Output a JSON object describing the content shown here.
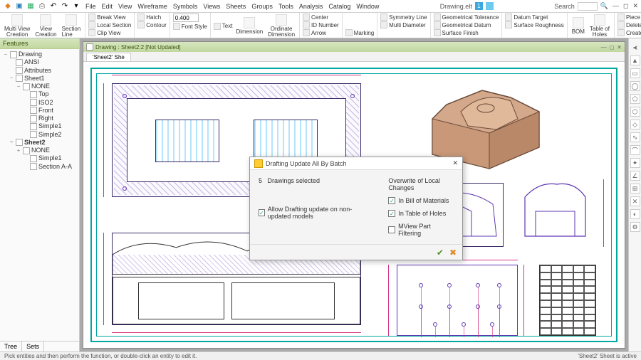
{
  "colors": {
    "accent_green_top": "#d6e6bf",
    "accent_green_bot": "#c1d89f",
    "teal_border": "#00a7a0",
    "purple_line": "#5e35b1",
    "magenta_dim": "#d63384",
    "iso_fill": "#d4a88a",
    "iso_edge": "#6a4a3a",
    "orange": "#f5a623"
  },
  "title": "Drawing.elt",
  "search_label": "Search",
  "menu": [
    "File",
    "Edit",
    "View",
    "Wireframe",
    "Symbols",
    "Views",
    "Sheets",
    "Groups",
    "Tools",
    "Analysis",
    "Catalog",
    "Window"
  ],
  "ribbon": {
    "g1": {
      "btn1": "Multi View\nCreation",
      "btn2": "View\nCreation",
      "btn3": "Section Line"
    },
    "g2": {
      "l1": "Break View",
      "l2": "Local Section",
      "l3": "Clip View"
    },
    "g3": {
      "l1": "Hatch",
      "l2": "Contour"
    },
    "g4": {
      "value": "0.400",
      "l1": "Font Style"
    },
    "g5": {
      "l1": "Text",
      "btn1": "Dimension",
      "btn2": "Ordinate\nDimension"
    },
    "g6": {
      "l1": "Center",
      "l2": "ID Number",
      "l3": "Arrow",
      "l4": "Marking"
    },
    "g7": {
      "l1": "Symmetry Line",
      "l2": "Multi Diameter"
    },
    "g8": {
      "l1": "Geometrical Tolerance",
      "l2": "Geometrical Datum",
      "l3": "Surface Finish"
    },
    "g9": {
      "l1": "Datum Target",
      "l2": "Surface Roughness"
    },
    "g10": {
      "btn1": "BOM",
      "btn2": "Table of\nHoles"
    },
    "g11": {
      "l1": "Piece Group",
      "l2": "Delete Master Group",
      "l3": "Create Group"
    }
  },
  "swatches": [
    "#000000",
    "#ffffff",
    "#ff0000",
    "#00a000",
    "#0000ff",
    "#ffff00",
    "#ff00ff",
    "#00ffff",
    "#800000",
    "#008080",
    "#808080",
    "#c0c0c0",
    "#ff8000",
    "#4040ff",
    "#a000a0",
    "#60d060"
  ],
  "features_header": "Features",
  "tree": [
    {
      "lvl": 0,
      "tw": "−",
      "label": "Drawing",
      "ic": 1
    },
    {
      "lvl": 1,
      "tw": "",
      "label": "ANSI",
      "ic": 1
    },
    {
      "lvl": 1,
      "tw": "",
      "label": "Attributes",
      "ic": 1
    },
    {
      "lvl": 1,
      "tw": "−",
      "label": "Sheet1",
      "ic": 1
    },
    {
      "lvl": 2,
      "tw": "−",
      "label": "NONE",
      "ic": 1
    },
    {
      "lvl": 3,
      "tw": "",
      "label": "Top",
      "ic": 1
    },
    {
      "lvl": 3,
      "tw": "",
      "label": "ISO2",
      "ic": 1
    },
    {
      "lvl": 3,
      "tw": "",
      "label": "Front",
      "ic": 1
    },
    {
      "lvl": 3,
      "tw": "",
      "label": "Right",
      "ic": 1
    },
    {
      "lvl": 3,
      "tw": "",
      "label": "Simple1",
      "ic": 1
    },
    {
      "lvl": 3,
      "tw": "",
      "label": "Simple2",
      "ic": 1
    },
    {
      "lvl": 1,
      "tw": "−",
      "label": "Sheet2",
      "ic": 1,
      "bold": true
    },
    {
      "lvl": 2,
      "tw": "+",
      "label": "NONE",
      "ic": 1
    },
    {
      "lvl": 3,
      "tw": "",
      "label": "Simple1",
      "ic": 1
    },
    {
      "lvl": 3,
      "tw": "",
      "label": "Section A-A",
      "ic": 1
    }
  ],
  "side_tabs": [
    "Tree",
    "Sets"
  ],
  "doc_title": "Drawing : Sheet2:2 [Not Updated]",
  "sheet_tab": "'Sheet2' She",
  "status_left": "Pick entities and then perform the function, or double-click an entity to edit it.",
  "status_right": "'Sheet2' Sheet is active",
  "dialog": {
    "title": "Drafting Update All By Batch",
    "count": "5",
    "count_label": "Drawings selected",
    "allow": "Allow Drafting update on non-updated models",
    "group": "Overwrite of Local Changes",
    "chk1": "In Bill of Materials",
    "chk2": "In Table of Holes",
    "chk3": "MView Part Filtering"
  },
  "right_tools": [
    "▲",
    "▭",
    "◯",
    "⬠",
    "⬡",
    "◇",
    "∿",
    "⌒",
    "✦",
    "∠",
    "⊞",
    "✕",
    "◐",
    "⚙"
  ]
}
